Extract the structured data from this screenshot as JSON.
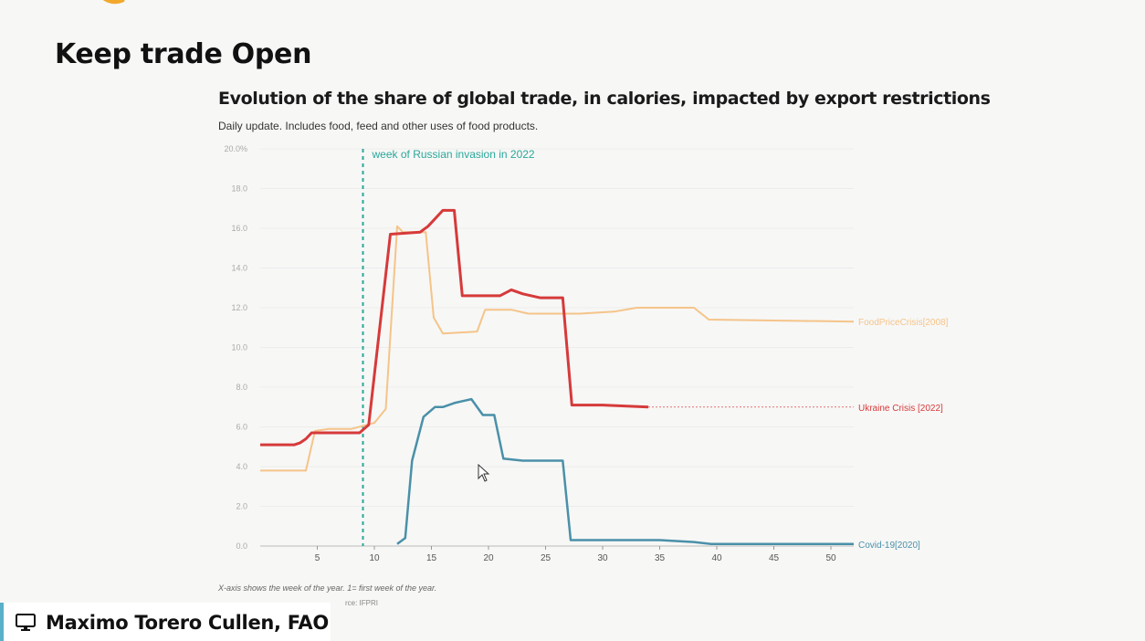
{
  "slide": {
    "title": "Keep trade Open"
  },
  "chart_data": {
    "type": "line",
    "title": "Evolution of the share of global trade, in calories, impacted by export restrictions",
    "subtitle": "Daily update. Includes food, feed and other uses of food products.",
    "xlabel": "",
    "ylabel": "",
    "xlim": [
      0,
      52
    ],
    "ylim": [
      0,
      20
    ],
    "x_ticks": [
      5,
      10,
      15,
      20,
      25,
      30,
      35,
      40,
      45,
      50
    ],
    "y_ticks": [
      {
        "value": 0,
        "label": "0.0"
      },
      {
        "value": 2,
        "label": "2.0"
      },
      {
        "value": 4,
        "label": "4.0"
      },
      {
        "value": 6,
        "label": "6.0"
      },
      {
        "value": 8,
        "label": "8.0"
      },
      {
        "value": 10,
        "label": "10.0"
      },
      {
        "value": 12,
        "label": "12.0"
      },
      {
        "value": 14,
        "label": "14.0"
      },
      {
        "value": 16,
        "label": "16.0"
      },
      {
        "value": 18,
        "label": "18.0"
      },
      {
        "value": 20,
        "label": "20.0%"
      }
    ],
    "grid": "horizontal",
    "annotation": {
      "x": 9,
      "label": "week of Russian invasion in 2022",
      "color": "#2aa89a"
    },
    "series": [
      {
        "name": "FoodPriceCrisis[2008]",
        "color": "#f5c489",
        "width": 2,
        "points": [
          [
            0,
            3.8
          ],
          [
            4,
            3.8
          ],
          [
            4.8,
            5.8
          ],
          [
            6,
            5.9
          ],
          [
            8,
            5.9
          ],
          [
            10,
            6.2
          ],
          [
            11,
            6.9
          ],
          [
            12,
            16.1
          ],
          [
            12.5,
            15.8
          ],
          [
            14.5,
            15.8
          ],
          [
            15.2,
            11.5
          ],
          [
            16,
            10.7
          ],
          [
            19,
            10.8
          ],
          [
            19.7,
            11.9
          ],
          [
            22,
            11.9
          ],
          [
            23.5,
            11.7
          ],
          [
            28,
            11.7
          ],
          [
            31,
            11.8
          ],
          [
            33,
            12.0
          ],
          [
            36,
            12.0
          ],
          [
            38,
            12.0
          ],
          [
            39.3,
            11.4
          ],
          [
            52,
            11.3
          ]
        ]
      },
      {
        "name": "Ukraine Crisis [2022]",
        "color": "#d63a3a",
        "width": 3,
        "dashed_extension_to": 52,
        "points": [
          [
            0,
            5.1
          ],
          [
            3,
            5.1
          ],
          [
            3.5,
            5.2
          ],
          [
            4,
            5.4
          ],
          [
            4.5,
            5.7
          ],
          [
            8.7,
            5.7
          ],
          [
            9.5,
            6.1
          ],
          [
            11.4,
            15.7
          ],
          [
            14,
            15.8
          ],
          [
            14.7,
            16.1
          ],
          [
            16,
            16.9
          ],
          [
            17,
            16.9
          ],
          [
            17.7,
            12.6
          ],
          [
            19,
            12.6
          ],
          [
            21,
            12.6
          ],
          [
            22,
            12.9
          ],
          [
            23,
            12.7
          ],
          [
            24.5,
            12.5
          ],
          [
            26.5,
            12.5
          ],
          [
            27.3,
            7.1
          ],
          [
            30,
            7.1
          ],
          [
            34,
            7.0
          ]
        ]
      },
      {
        "name": "Covid-19[2020]",
        "color": "#4a90a8",
        "width": 2.5,
        "points": [
          [
            12,
            0.1
          ],
          [
            12.7,
            0.4
          ],
          [
            13.3,
            4.3
          ],
          [
            14.3,
            6.5
          ],
          [
            15.3,
            7.0
          ],
          [
            16,
            7.0
          ],
          [
            17,
            7.2
          ],
          [
            18.5,
            7.4
          ],
          [
            19.5,
            6.6
          ],
          [
            20.5,
            6.6
          ],
          [
            21.3,
            4.4
          ],
          [
            23,
            4.3
          ],
          [
            26.5,
            4.3
          ],
          [
            27.2,
            0.3
          ],
          [
            35,
            0.3
          ],
          [
            38,
            0.2
          ],
          [
            39.5,
            0.1
          ],
          [
            52,
            0.1
          ]
        ]
      }
    ]
  },
  "footer": {
    "note": "X-axis shows the week of the year. 1= first week of the year.",
    "source": "rce: IFPRI"
  },
  "speaker": {
    "name": "Maximo Torero Cullen, FAO",
    "icon": "monitor-icon"
  }
}
